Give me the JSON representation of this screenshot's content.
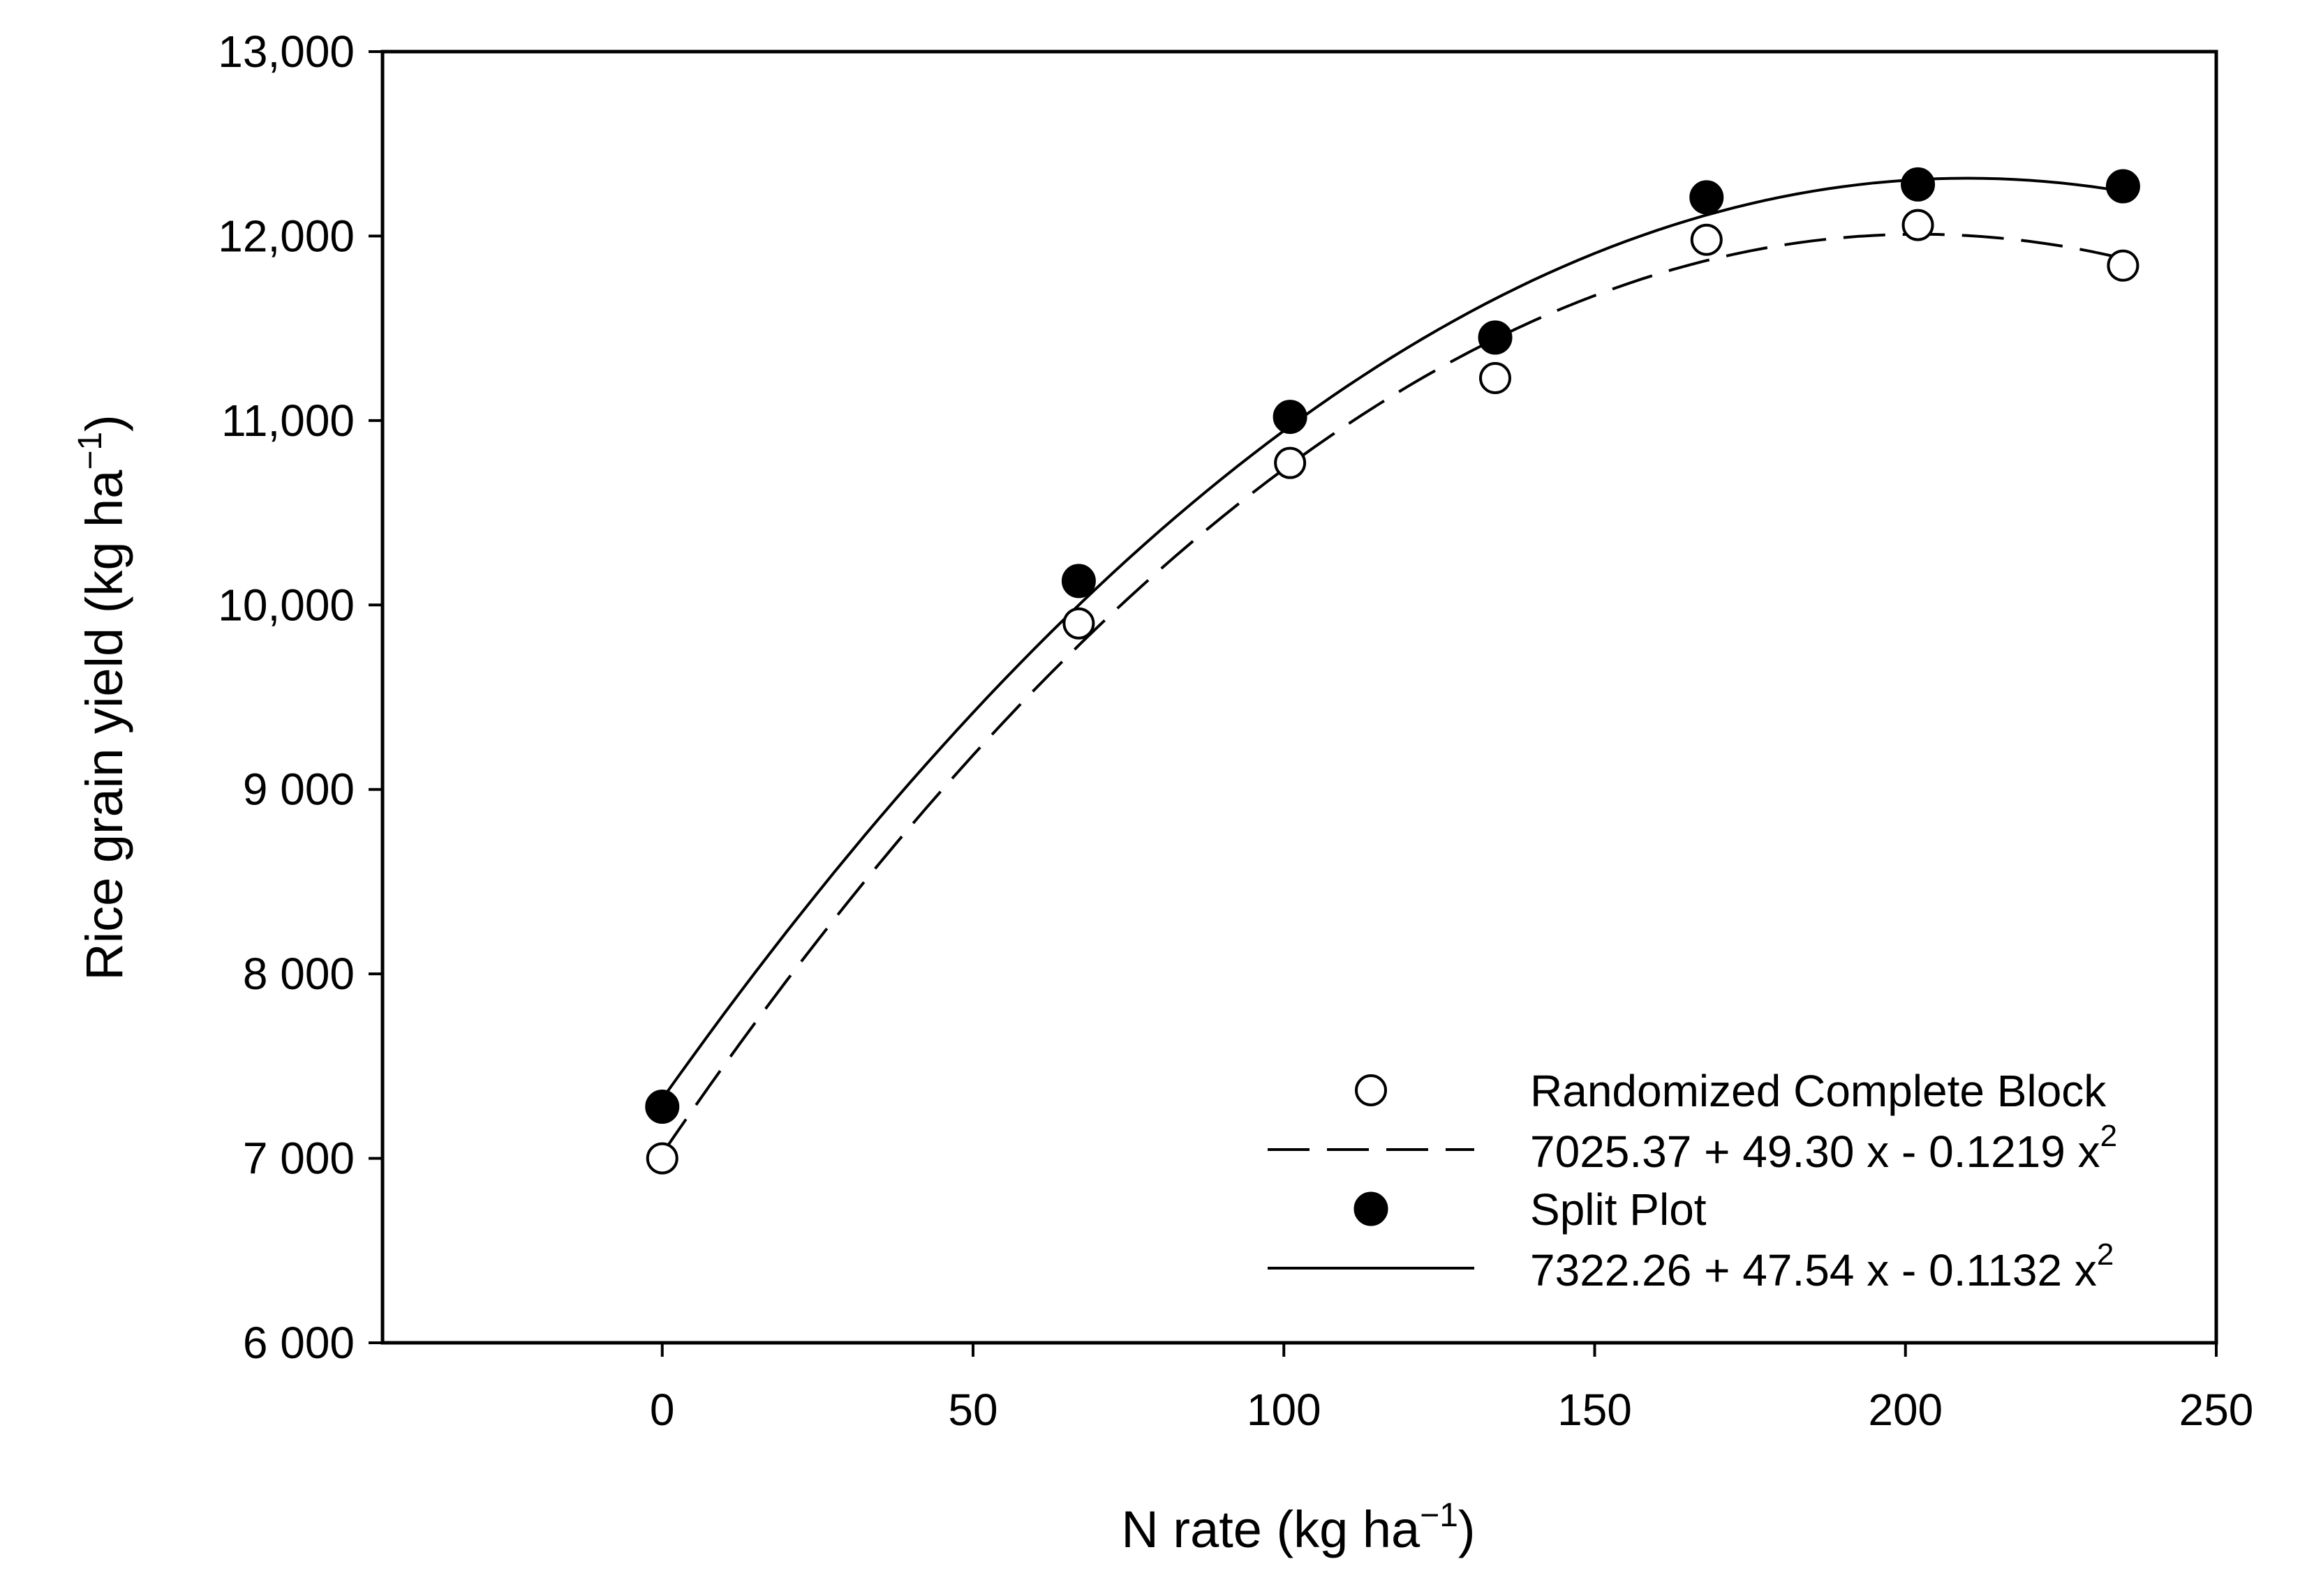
{
  "chart_data": {
    "type": "scatter",
    "xlabel": "N rate (kg ha",
    "xlabel_sup": "−1",
    "xlabel_close": ")",
    "ylabel": "Rice grain yield (kg ha",
    "ylabel_sup": "−1",
    "ylabel_close": ")",
    "xlim": [
      -45,
      250
    ],
    "ylim": [
      6000,
      13000
    ],
    "grid": false,
    "legend_position": "bottom-right",
    "x_ticks": [
      {
        "value": 0,
        "label": "0"
      },
      {
        "value": 50,
        "label": "50"
      },
      {
        "value": 100,
        "label": "100"
      },
      {
        "value": 150,
        "label": "150"
      },
      {
        "value": 200,
        "label": "200"
      },
      {
        "value": 250,
        "label": "250"
      }
    ],
    "y_ticks": [
      {
        "value": 6000,
        "label": "6 000"
      },
      {
        "value": 7000,
        "label": "7 000"
      },
      {
        "value": 8000,
        "label": "8 000"
      },
      {
        "value": 9000,
        "label": "9 000"
      },
      {
        "value": 10000,
        "label": "10,000"
      },
      {
        "value": 11000,
        "label": "11,000"
      },
      {
        "value": 12000,
        "label": "12,000"
      },
      {
        "value": 13000,
        "label": "13,000"
      }
    ],
    "series": [
      {
        "name": "Randomized Complete Block",
        "marker": "open-circle",
        "x": [
          0,
          67,
          101,
          134,
          168,
          202,
          235
        ],
        "y": [
          7000,
          9900,
          10770,
          11230,
          11980,
          12060,
          11840
        ]
      },
      {
        "name": "Split Plot",
        "marker": "filled-circle",
        "x": [
          0,
          67,
          101,
          134,
          168,
          202,
          235
        ],
        "y": [
          7280,
          10130,
          11020,
          11450,
          12210,
          12280,
          12270
        ]
      }
    ],
    "fits": [
      {
        "name": "Randomized Complete Block",
        "style": "dashed",
        "equation": "7025.37 + 49.30 x - 0.1219 x",
        "equation_sup": "2",
        "coefficients": [
          7025.37,
          49.3,
          -0.1219
        ],
        "x_range": [
          0,
          235
        ]
      },
      {
        "name": "Split Plot",
        "style": "solid",
        "equation": "7322.26 + 47.54 x - 0.1132 x",
        "equation_sup": "2",
        "coefficients": [
          7322.26,
          47.54,
          -0.1132
        ],
        "x_range": [
          0,
          235
        ]
      }
    ]
  }
}
